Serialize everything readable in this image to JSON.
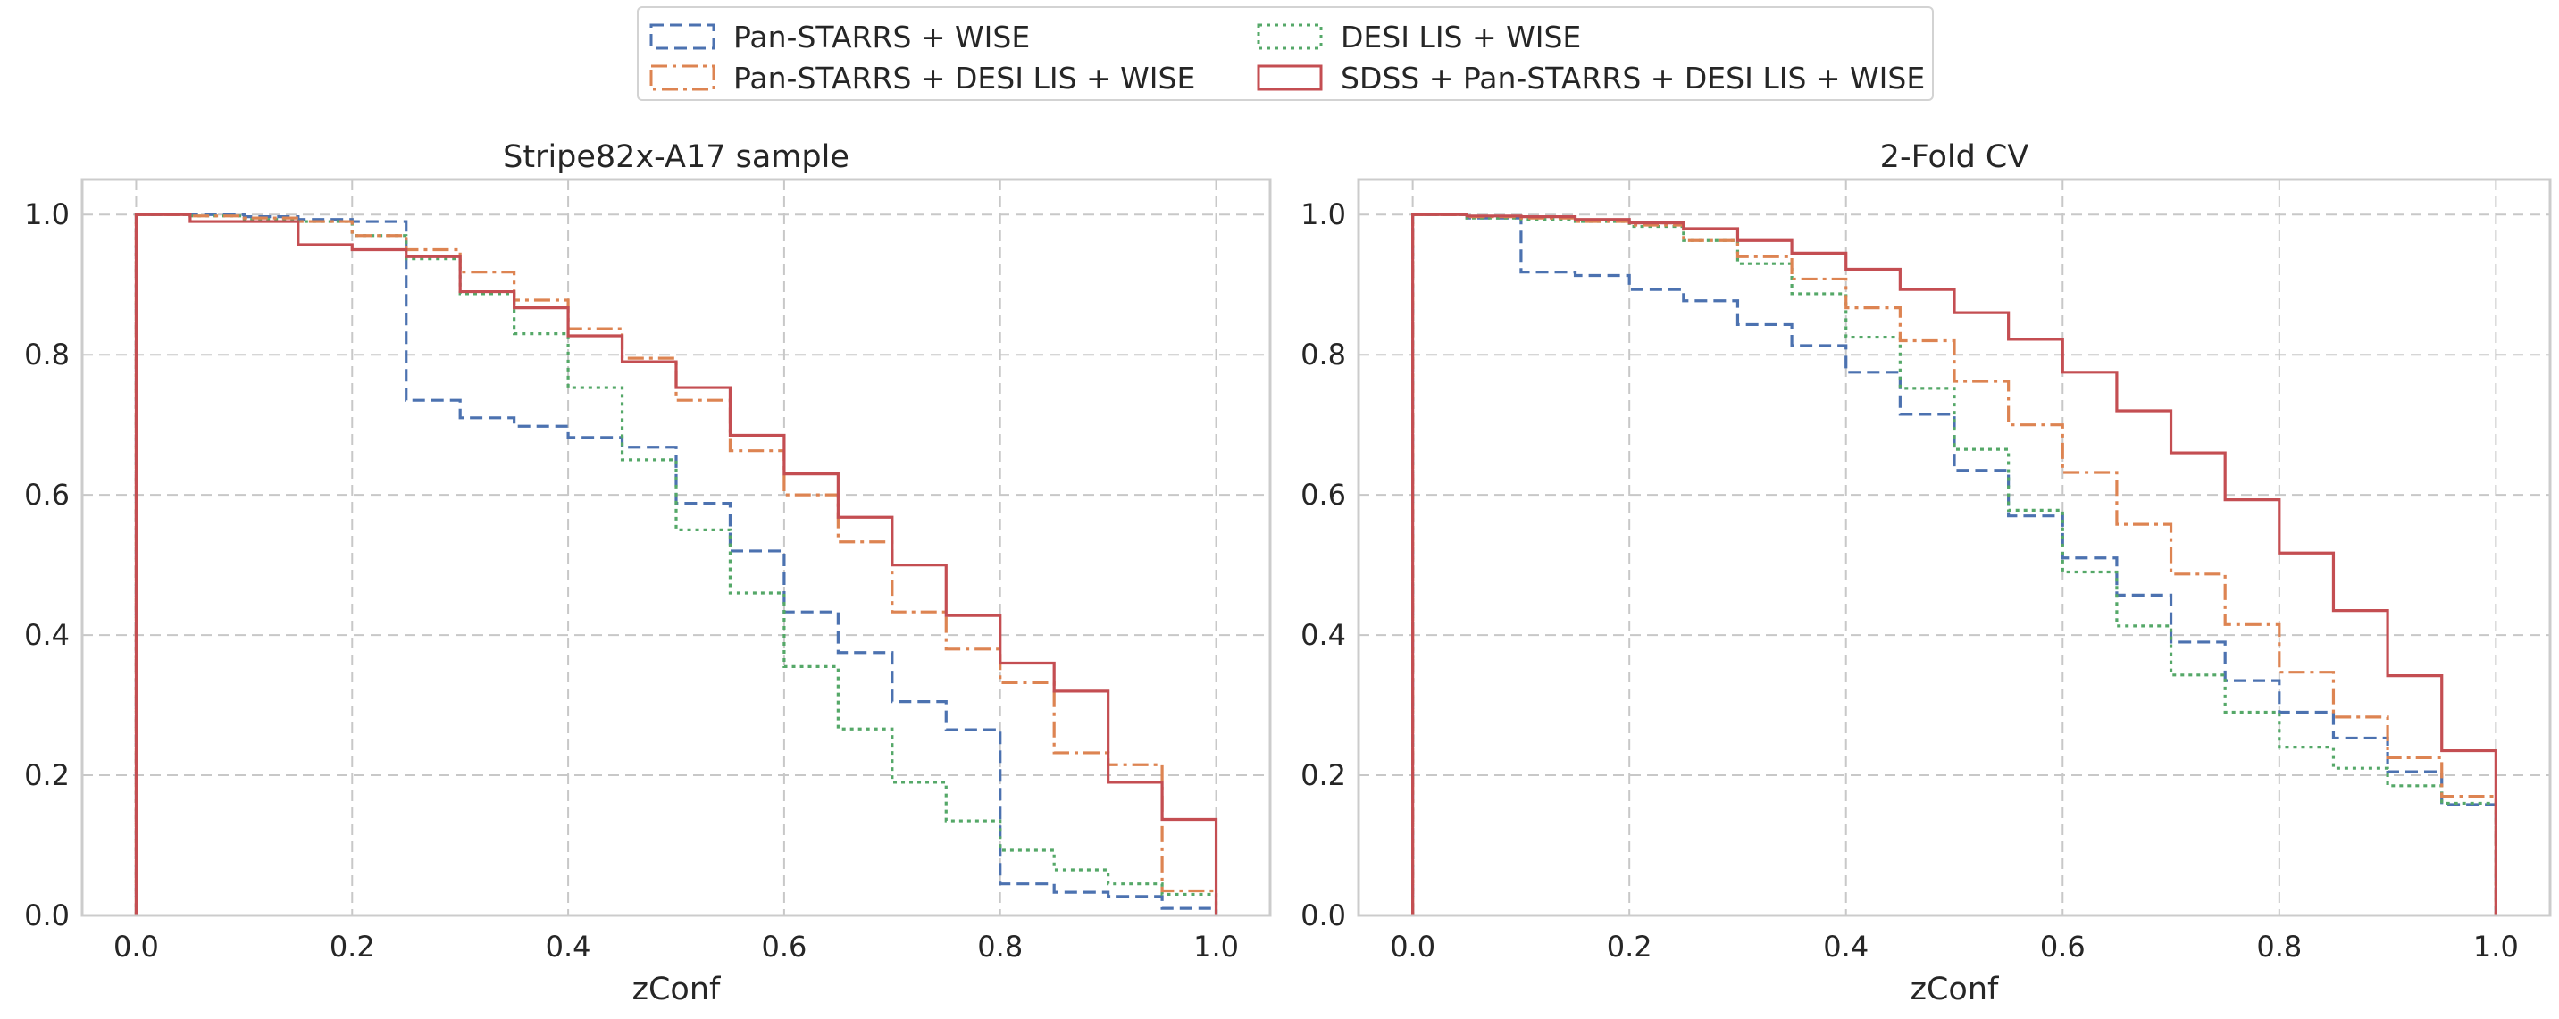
{
  "legend": {
    "entries": [
      {
        "label": "Pan-STARRS + WISE",
        "series_id": "ps_wise"
      },
      {
        "label": "DESI LIS + WISE",
        "series_id": "desi_wise"
      },
      {
        "label": "Pan-STARRS + DESI LIS + WISE",
        "series_id": "ps_desi_wise"
      },
      {
        "label": "SDSS + Pan-STARRS + DESI LIS + WISE",
        "series_id": "sdss_ps_desi_wise"
      }
    ]
  },
  "styles": {
    "ps_wise": {
      "color": "#4c72b0",
      "dash": "14,7"
    },
    "desi_wise": {
      "color": "#55a868",
      "dash": "4,5"
    },
    "ps_desi_wise": {
      "color": "#dd8452",
      "dash": "18,6,4,6"
    },
    "sdss_ps_desi_wise": {
      "color": "#c44e52",
      "dash": ""
    }
  },
  "chart_data": [
    {
      "type": "line",
      "title": "Stripe82x-A17 sample",
      "xlabel": "zConf",
      "ylabel": "",
      "xlim": [
        -0.05,
        1.05
      ],
      "ylim": [
        0.0,
        1.05
      ],
      "xticks": [
        "0.0",
        "0.2",
        "0.4",
        "0.6",
        "0.8",
        "1.0"
      ],
      "yticks": [
        "0.0",
        "0.2",
        "0.4",
        "0.6",
        "0.8",
        "1.0"
      ],
      "grid": true,
      "step_edges": [
        0.0,
        0.05,
        0.1,
        0.15,
        0.2,
        0.25,
        0.3,
        0.35,
        0.4,
        0.45,
        0.5,
        0.55,
        0.6,
        0.65,
        0.7,
        0.75,
        0.8,
        0.85,
        0.9,
        0.95,
        1.0
      ],
      "series": [
        {
          "id": "ps_wise",
          "name": "Pan-STARRS + WISE",
          "values": [
            1.0,
            1.0,
            0.997,
            0.993,
            0.99,
            0.735,
            0.71,
            0.698,
            0.682,
            0.668,
            0.588,
            0.52,
            0.433,
            0.375,
            0.305,
            0.265,
            0.045,
            0.033,
            0.027,
            0.01
          ]
        },
        {
          "id": "desi_wise",
          "name": "DESI LIS + WISE",
          "values": [
            1.0,
            0.998,
            0.993,
            0.99,
            0.97,
            0.937,
            0.887,
            0.83,
            0.753,
            0.65,
            0.55,
            0.46,
            0.355,
            0.266,
            0.19,
            0.135,
            0.093,
            0.065,
            0.045,
            0.03
          ]
        },
        {
          "id": "ps_desi_wise",
          "name": "Pan-STARRS + DESI LIS + WISE",
          "values": [
            1.0,
            0.998,
            0.995,
            0.99,
            0.97,
            0.95,
            0.918,
            0.878,
            0.837,
            0.795,
            0.735,
            0.663,
            0.6,
            0.533,
            0.433,
            0.38,
            0.332,
            0.232,
            0.215,
            0.035
          ]
        },
        {
          "id": "sdss_ps_desi_wise",
          "name": "SDSS + Pan-STARRS + DESI LIS + WISE",
          "values": [
            1.0,
            0.99,
            0.99,
            0.957,
            0.95,
            0.94,
            0.89,
            0.867,
            0.827,
            0.79,
            0.753,
            0.685,
            0.63,
            0.568,
            0.5,
            0.428,
            0.36,
            0.32,
            0.19,
            0.137
          ]
        }
      ]
    },
    {
      "type": "line",
      "title": "2-Fold CV",
      "xlabel": "zConf",
      "ylabel": "",
      "xlim": [
        -0.05,
        1.05
      ],
      "ylim": [
        0.0,
        1.05
      ],
      "xticks": [
        "0.0",
        "0.2",
        "0.4",
        "0.6",
        "0.8",
        "1.0"
      ],
      "yticks": [
        "0.0",
        "0.2",
        "0.4",
        "0.6",
        "0.8",
        "1.0"
      ],
      "grid": true,
      "step_edges": [
        0.0,
        0.05,
        0.1,
        0.15,
        0.2,
        0.25,
        0.3,
        0.35,
        0.4,
        0.45,
        0.5,
        0.55,
        0.6,
        0.65,
        0.7,
        0.75,
        0.8,
        0.85,
        0.9,
        0.95,
        1.0
      ],
      "series": [
        {
          "id": "ps_wise",
          "name": "Pan-STARRS + WISE",
          "values": [
            1.0,
            0.995,
            0.918,
            0.913,
            0.893,
            0.877,
            0.843,
            0.813,
            0.775,
            0.715,
            0.635,
            0.57,
            0.51,
            0.457,
            0.39,
            0.335,
            0.29,
            0.253,
            0.205,
            0.158
          ]
        },
        {
          "id": "desi_wise",
          "name": "DESI LIS + WISE",
          "values": [
            1.0,
            0.995,
            0.993,
            0.99,
            0.983,
            0.963,
            0.93,
            0.887,
            0.825,
            0.752,
            0.665,
            0.578,
            0.49,
            0.413,
            0.343,
            0.29,
            0.24,
            0.21,
            0.185,
            0.16
          ]
        },
        {
          "id": "ps_desi_wise",
          "name": "Pan-STARRS + DESI LIS + WISE",
          "values": [
            1.0,
            0.997,
            0.995,
            0.99,
            0.985,
            0.963,
            0.94,
            0.908,
            0.867,
            0.82,
            0.762,
            0.7,
            0.632,
            0.558,
            0.487,
            0.415,
            0.347,
            0.283,
            0.225,
            0.17
          ]
        },
        {
          "id": "sdss_ps_desi_wise",
          "name": "SDSS + Pan-STARRS + DESI LIS + WISE",
          "values": [
            1.0,
            0.998,
            0.997,
            0.993,
            0.988,
            0.98,
            0.963,
            0.945,
            0.922,
            0.893,
            0.86,
            0.822,
            0.775,
            0.72,
            0.66,
            0.593,
            0.517,
            0.435,
            0.342,
            0.235
          ]
        }
      ]
    }
  ]
}
